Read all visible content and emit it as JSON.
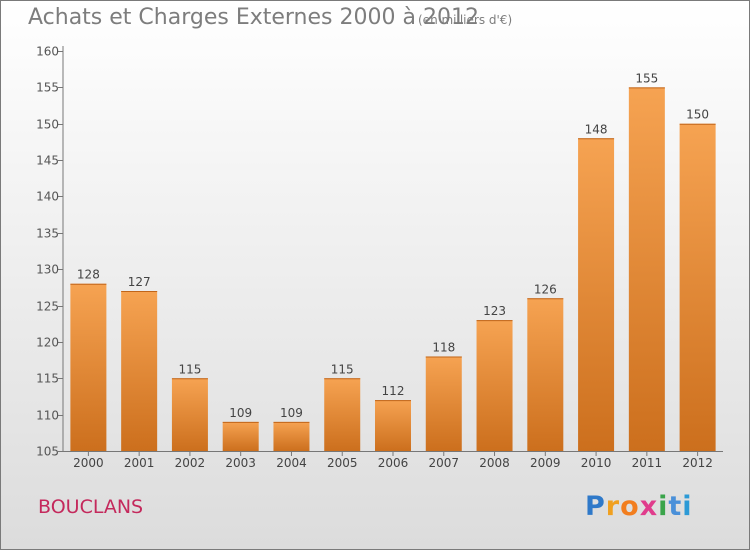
{
  "header": {
    "title": "Achats et Charges Externes 2000 à 2012",
    "unit": "(en milliers d'€)"
  },
  "footer": {
    "commune": "BOUCLANS"
  },
  "logo": {
    "letters": [
      "P",
      "r",
      "o",
      "x",
      "i",
      "t",
      "i"
    ],
    "colors": [
      "#2f79c9",
      "#f0a020",
      "#f27e1f",
      "#e03c8c",
      "#3aa44a",
      "#4a90d9",
      "#2c9ad6"
    ]
  },
  "chart_data": {
    "type": "bar",
    "categories": [
      "2000",
      "2001",
      "2002",
      "2003",
      "2004",
      "2005",
      "2006",
      "2007",
      "2008",
      "2009",
      "2010",
      "2011",
      "2012"
    ],
    "values": [
      128,
      127,
      115,
      109,
      109,
      115,
      112,
      118,
      123,
      126,
      148,
      155,
      150
    ],
    "data_labels": [
      "128",
      "127",
      "115",
      "109",
      "109",
      "115",
      "112",
      "118",
      "123",
      "126",
      "148",
      "155",
      "150"
    ],
    "ylim": [
      105,
      160
    ],
    "yticks": [
      105,
      110,
      115,
      120,
      125,
      130,
      135,
      140,
      145,
      150,
      155,
      160
    ],
    "grid": false,
    "bar_color_top": "#f6a352",
    "bar_color_bottom": "#cc6f1d"
  }
}
